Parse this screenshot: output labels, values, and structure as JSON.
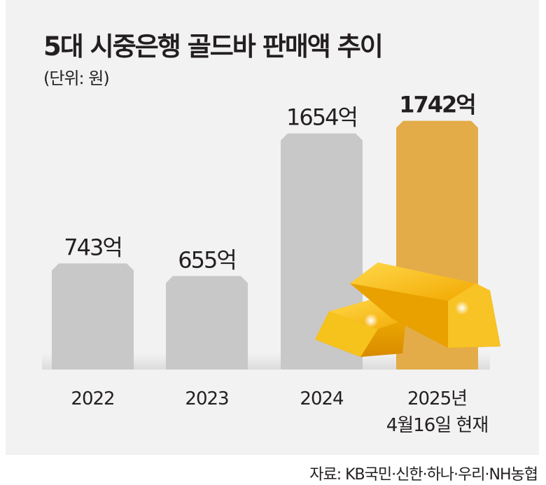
{
  "chart_data": {
    "type": "bar",
    "title": "5대 시중은행 골드바 판매액 추이",
    "subtitle": "(단위: 원)",
    "categories": [
      "2022",
      "2023",
      "2024",
      "2025년\n4월16일 현재"
    ],
    "category_lines": [
      [
        "2022"
      ],
      [
        "2023"
      ],
      [
        "2024"
      ],
      [
        "2025년",
        "4월16일 현재"
      ]
    ],
    "values": [
      743,
      655,
      1654,
      1742
    ],
    "data_labels": [
      "743억",
      "655억",
      "1654억",
      "1742억"
    ],
    "unit": "억 원",
    "ylim": [
      0,
      1800
    ],
    "grid": false,
    "colors": {
      "default": "#c8c8c8",
      "highlight": "#e3ac48"
    },
    "highlight_index": 3
  },
  "source": "자료: KB국민·신한·하나·우리·NH농협"
}
